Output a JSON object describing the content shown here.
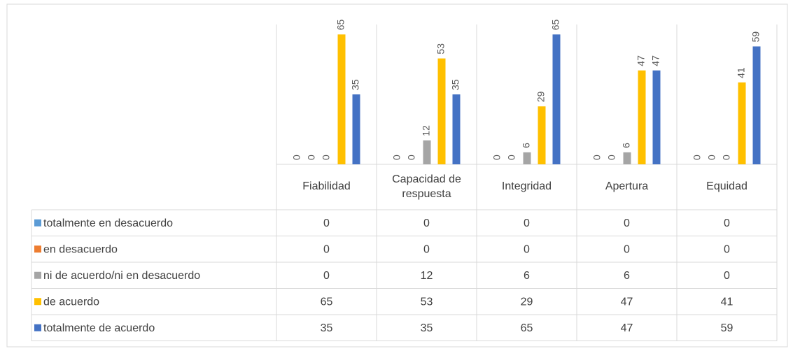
{
  "chart_data": {
    "type": "bar",
    "categories": [
      "Fiabilidad",
      "Capacidad de respuesta",
      "Integridad",
      "Apertura",
      "Equidad"
    ],
    "series": [
      {
        "name": "totalmente en desacuerdo",
        "color": "#5b9bd5",
        "values": [
          0,
          0,
          0,
          0,
          0
        ]
      },
      {
        "name": "en desacuerdo",
        "color": "#ed7d31",
        "values": [
          0,
          0,
          0,
          0,
          0
        ]
      },
      {
        "name": "ni de acuerdo/ni en desacuerdo",
        "color": "#a5a5a5",
        "values": [
          0,
          12,
          6,
          6,
          0
        ]
      },
      {
        "name": "de acuerdo",
        "color": "#ffc000",
        "values": [
          65,
          53,
          29,
          47,
          41
        ]
      },
      {
        "name": "totalmente de acuerdo",
        "color": "#4472c4",
        "values": [
          35,
          35,
          65,
          47,
          59
        ]
      }
    ],
    "ylim": [
      0,
      70
    ]
  }
}
